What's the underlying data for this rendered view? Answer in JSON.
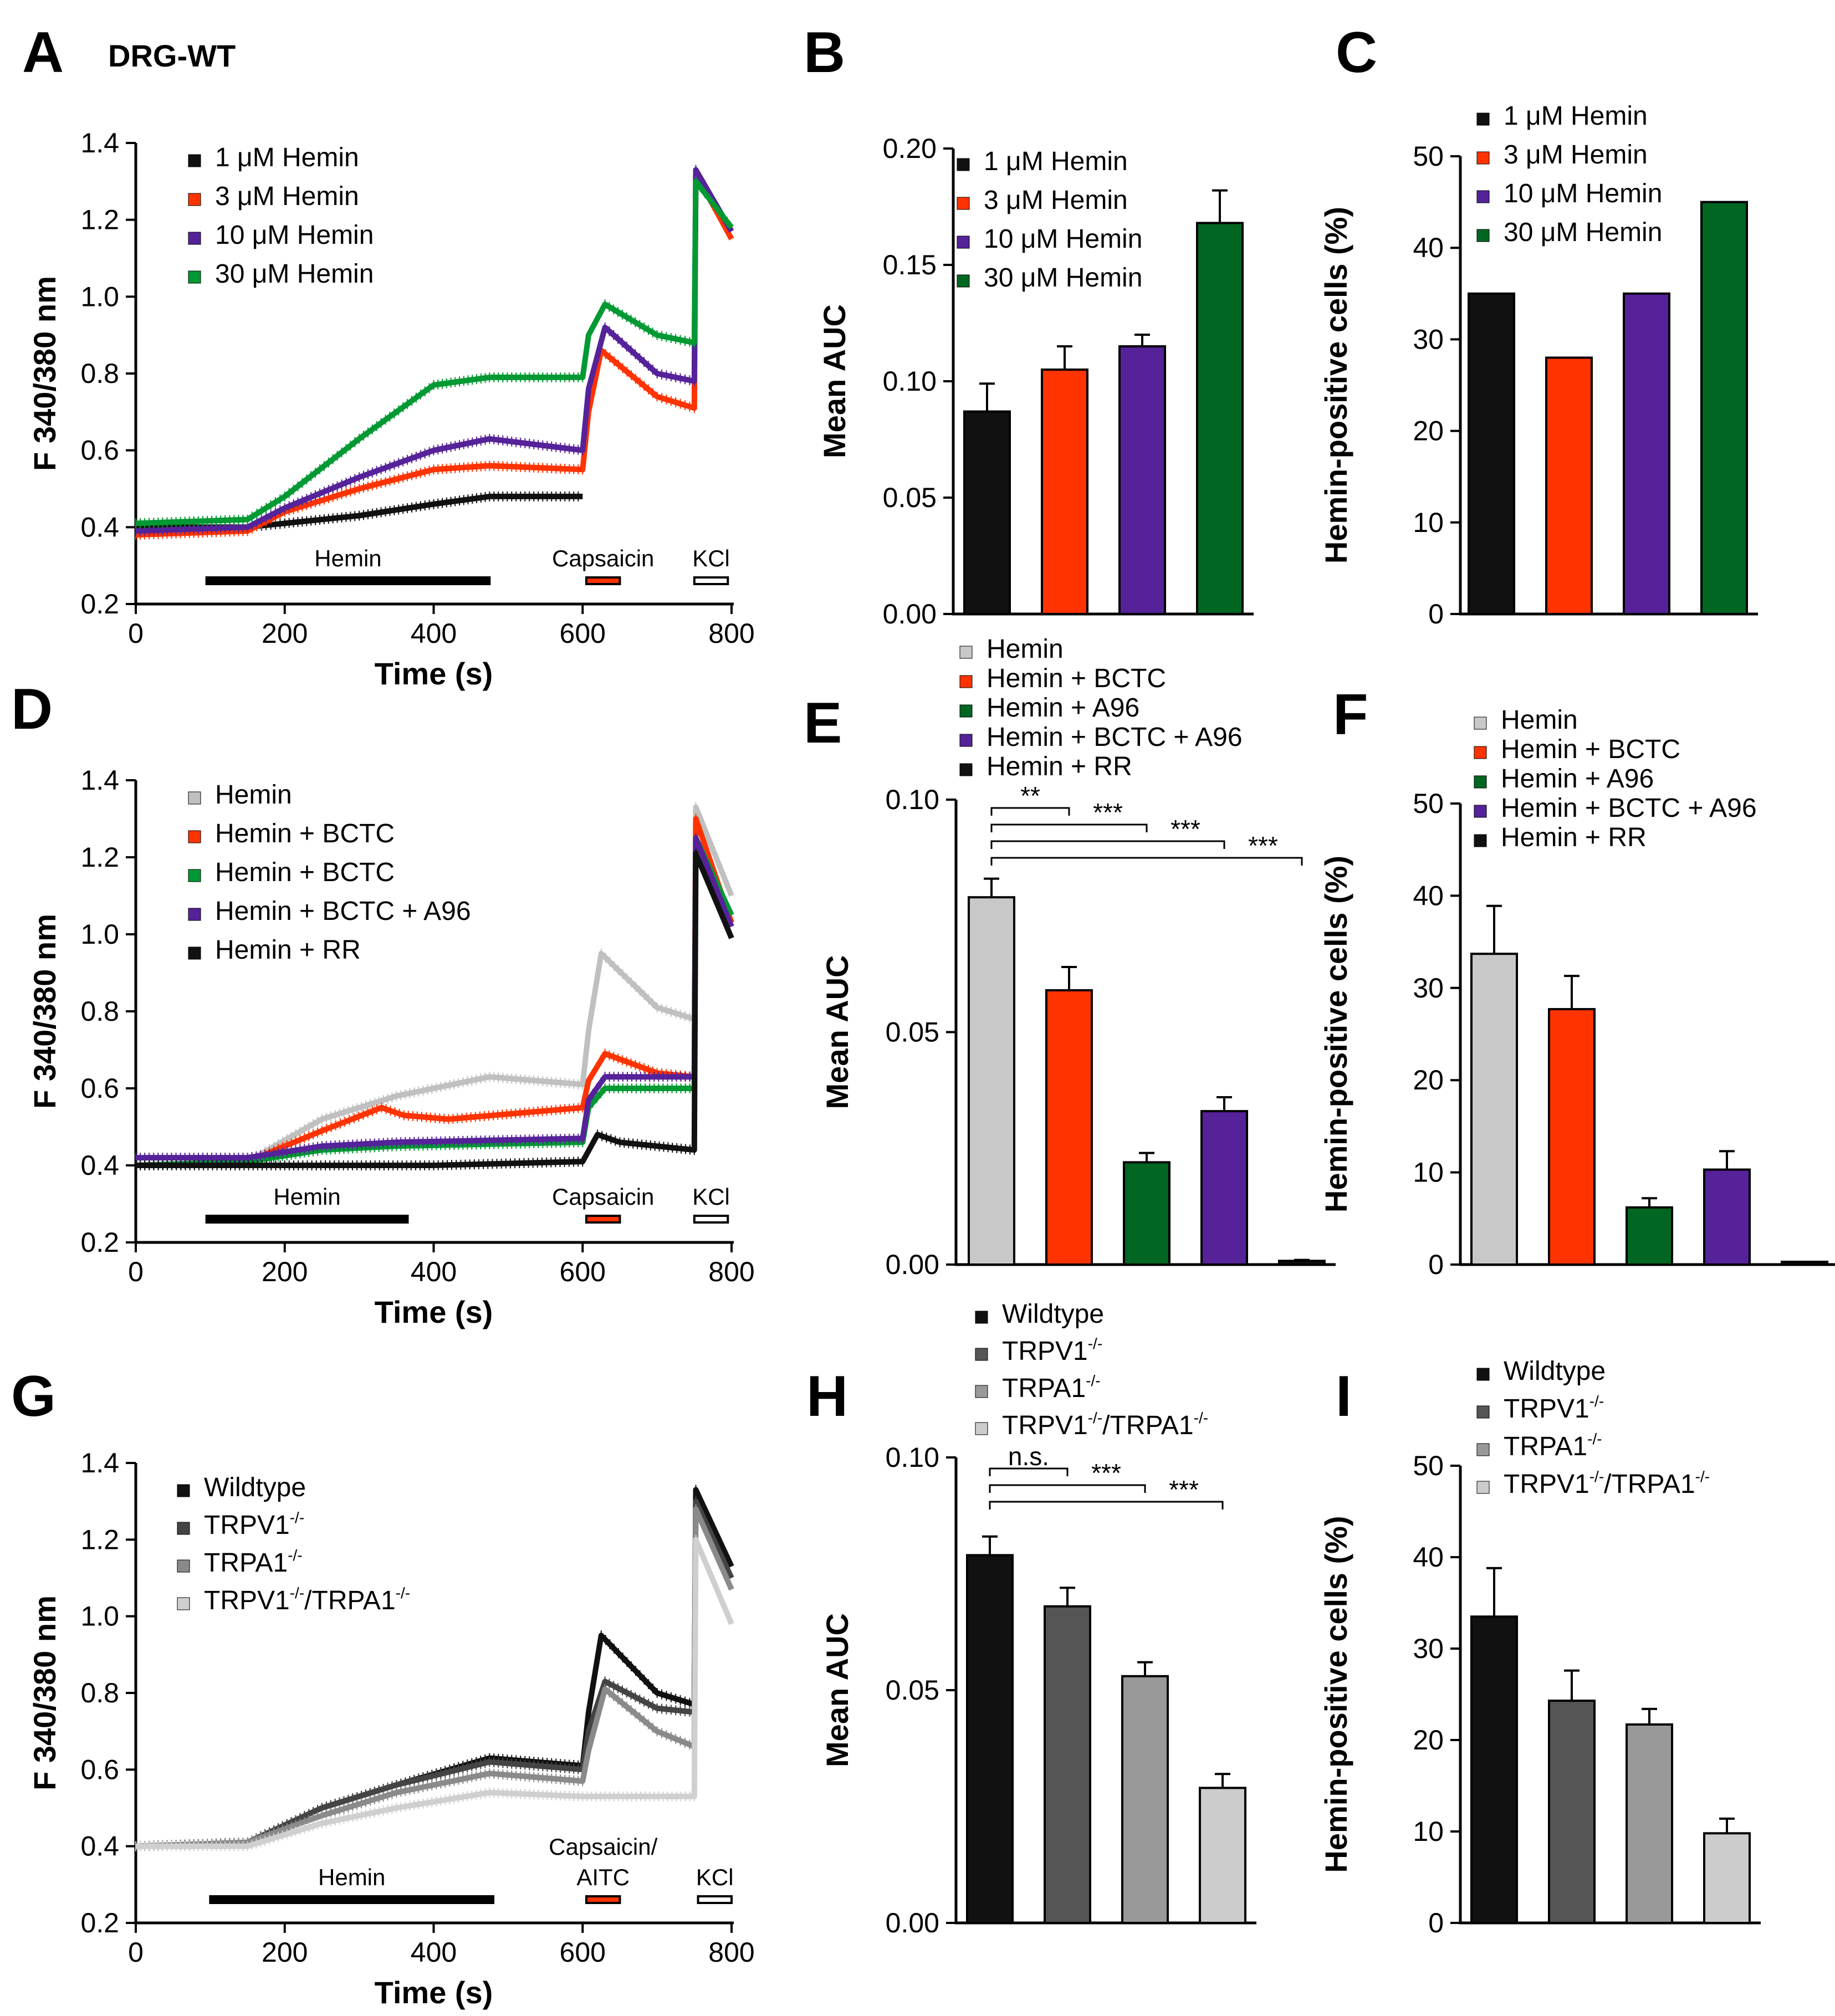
{
  "figure_title": "DRG-WT",
  "panels": [
    "A",
    "B",
    "C",
    "D",
    "E",
    "F",
    "G",
    "H",
    "I"
  ],
  "chart_data": [
    {
      "id": "A",
      "type": "line",
      "xlabel": "Time (s)",
      "ylabel": "F 340/380 nm",
      "xlim": [
        0,
        800
      ],
      "ylim": [
        0.2,
        1.4
      ],
      "xticks": [
        "0",
        "200",
        "400",
        "600",
        "800"
      ],
      "yticks": [
        "0.2",
        "0.4",
        "0.6",
        "0.8",
        "1.0",
        "1.2",
        "1.4"
      ],
      "bars": [
        {
          "label": "Hemin",
          "start": 95,
          "end": 475,
          "color": "#000000"
        },
        {
          "label": "Capsaicin",
          "start": 605,
          "end": 650,
          "color": "#ff3300"
        },
        {
          "label": "KCl",
          "start": 750,
          "end": 795,
          "color": "#ffffff"
        }
      ],
      "series": [
        {
          "name": "1 μM Hemin",
          "color": "#111111",
          "points": [
            [
              0,
              0.4
            ],
            [
              150,
              0.4
            ],
            [
              200,
              0.41
            ],
            [
              300,
              0.43
            ],
            [
              400,
              0.46
            ],
            [
              475,
              0.48
            ],
            [
              600,
              0.48
            ]
          ]
        },
        {
          "name": "3 μM Hemin",
          "color": "#ff3300",
          "points": [
            [
              0,
              0.38
            ],
            [
              150,
              0.39
            ],
            [
              200,
              0.44
            ],
            [
              300,
              0.5
            ],
            [
              400,
              0.55
            ],
            [
              475,
              0.56
            ],
            [
              600,
              0.55
            ],
            [
              608,
              0.7
            ],
            [
              625,
              0.86
            ],
            [
              700,
              0.74
            ],
            [
              750,
              0.71
            ],
            [
              752,
              1.32
            ],
            [
              800,
              1.15
            ]
          ]
        },
        {
          "name": "10 μM Hemin",
          "color": "#552299",
          "points": [
            [
              0,
              0.39
            ],
            [
              150,
              0.4
            ],
            [
              200,
              0.45
            ],
            [
              300,
              0.53
            ],
            [
              400,
              0.6
            ],
            [
              475,
              0.63
            ],
            [
              600,
              0.6
            ],
            [
              608,
              0.76
            ],
            [
              630,
              0.92
            ],
            [
              700,
              0.8
            ],
            [
              750,
              0.78
            ],
            [
              752,
              1.33
            ],
            [
              800,
              1.17
            ]
          ]
        },
        {
          "name": "30 μM Hemin",
          "color": "#009933",
          "points": [
            [
              0,
              0.41
            ],
            [
              150,
              0.42
            ],
            [
              200,
              0.48
            ],
            [
              300,
              0.63
            ],
            [
              400,
              0.77
            ],
            [
              475,
              0.79
            ],
            [
              600,
              0.79
            ],
            [
              608,
              0.9
            ],
            [
              630,
              0.98
            ],
            [
              700,
              0.9
            ],
            [
              750,
              0.88
            ],
            [
              752,
              1.3
            ],
            [
              800,
              1.18
            ]
          ]
        }
      ]
    },
    {
      "id": "B",
      "type": "bar",
      "ylabel": "Mean AUC",
      "ylim": [
        0,
        0.2
      ],
      "yticks": [
        "0.00",
        "0.05",
        "0.10",
        "0.15",
        "0.20"
      ],
      "categories": [
        "1 μM Hemin",
        "3 μM Hemin",
        "10 μM Hemin",
        "30 μM Hemin"
      ],
      "values": [
        0.087,
        0.105,
        0.115,
        0.168
      ],
      "errors": [
        0.012,
        0.01,
        0.005,
        0.014
      ],
      "colors": [
        "#111111",
        "#ff3300",
        "#552299",
        "#006622"
      ]
    },
    {
      "id": "C",
      "type": "bar",
      "ylabel": "Hemin-positive cells (%)",
      "ylim": [
        0,
        50
      ],
      "yticks": [
        "0",
        "10",
        "20",
        "30",
        "40",
        "50"
      ],
      "categories": [
        "1 μM Hemin",
        "3 μM Hemin",
        "10 μM Hemin",
        "30 μM Hemin"
      ],
      "values": [
        35,
        28,
        35,
        45
      ],
      "colors": [
        "#111111",
        "#ff3300",
        "#552299",
        "#006622"
      ]
    },
    {
      "id": "D",
      "type": "line",
      "xlabel": "Time (s)",
      "ylabel": "F 340/380 nm",
      "xlim": [
        0,
        800
      ],
      "ylim": [
        0.2,
        1.4
      ],
      "xticks": [
        "0",
        "200",
        "400",
        "600",
        "800"
      ],
      "yticks": [
        "0.2",
        "0.4",
        "0.6",
        "0.8",
        "1.0",
        "1.2",
        "1.4"
      ],
      "bars": [
        {
          "label": "Hemin",
          "start": 95,
          "end": 365,
          "color": "#000000"
        },
        {
          "label": "Capsaicin",
          "start": 605,
          "end": 650,
          "color": "#ff3300"
        },
        {
          "label": "KCl",
          "start": 750,
          "end": 795,
          "color": "#ffffff"
        }
      ],
      "series": [
        {
          "name": "Hemin",
          "color": "#c0c0c0",
          "points": [
            [
              0,
              0.4
            ],
            [
              150,
              0.41
            ],
            [
              250,
              0.52
            ],
            [
              350,
              0.58
            ],
            [
              475,
              0.63
            ],
            [
              600,
              0.61
            ],
            [
              608,
              0.75
            ],
            [
              625,
              0.95
            ],
            [
              700,
              0.81
            ],
            [
              750,
              0.78
            ],
            [
              752,
              1.33
            ],
            [
              800,
              1.1
            ]
          ]
        },
        {
          "name": "Hemin + BCTC",
          "color": "#ff3300",
          "points": [
            [
              0,
              0.4
            ],
            [
              150,
              0.41
            ],
            [
              250,
              0.49
            ],
            [
              330,
              0.55
            ],
            [
              360,
              0.53
            ],
            [
              420,
              0.52
            ],
            [
              600,
              0.55
            ],
            [
              608,
              0.62
            ],
            [
              630,
              0.69
            ],
            [
              700,
              0.64
            ],
            [
              750,
              0.63
            ],
            [
              752,
              1.3
            ],
            [
              800,
              1.03
            ]
          ]
        },
        {
          "name": "Hemin + BCTC",
          "color": "#009933",
          "points": [
            [
              0,
              0.4
            ],
            [
              150,
              0.41
            ],
            [
              250,
              0.44
            ],
            [
              350,
              0.45
            ],
            [
              600,
              0.46
            ],
            [
              608,
              0.55
            ],
            [
              630,
              0.6
            ],
            [
              750,
              0.6
            ],
            [
              752,
              1.25
            ],
            [
              800,
              1.05
            ]
          ]
        },
        {
          "name": "Hemin + BCTC + A96",
          "color": "#552299",
          "points": [
            [
              0,
              0.42
            ],
            [
              150,
              0.42
            ],
            [
              250,
              0.45
            ],
            [
              350,
              0.46
            ],
            [
              600,
              0.47
            ],
            [
              608,
              0.57
            ],
            [
              630,
              0.63
            ],
            [
              750,
              0.63
            ],
            [
              752,
              1.25
            ],
            [
              800,
              1.02
            ]
          ]
        },
        {
          "name": "Hemin + RR",
          "color": "#111111",
          "points": [
            [
              0,
              0.4
            ],
            [
              200,
              0.4
            ],
            [
              400,
              0.4
            ],
            [
              600,
              0.41
            ],
            [
              620,
              0.48
            ],
            [
              650,
              0.46
            ],
            [
              750,
              0.44
            ],
            [
              752,
              1.21
            ],
            [
              800,
              0.99
            ]
          ]
        }
      ]
    },
    {
      "id": "E",
      "type": "bar",
      "ylabel": "Mean AUC",
      "ylim": [
        0,
        0.1
      ],
      "yticks": [
        "0.00",
        "0.05",
        "0.10"
      ],
      "categories": [
        "Hemin",
        "Hemin + BCTC",
        "Hemin + A96",
        "Hemin + BCTC + A96",
        "Hemin + RR"
      ],
      "values": [
        0.079,
        0.059,
        0.022,
        0.033,
        0.0008
      ],
      "errors": [
        0.004,
        0.005,
        0.002,
        0.003,
        0.0002
      ],
      "colors": [
        "#c8c8c8",
        "#ff3300",
        "#006622",
        "#552299",
        "#111111"
      ],
      "significance": [
        {
          "label": "**",
          "from": 0,
          "to": 1
        },
        {
          "label": "***",
          "from": 0,
          "to": 2
        },
        {
          "label": "***",
          "from": 0,
          "to": 3
        },
        {
          "label": "***",
          "from": 0,
          "to": 4
        }
      ]
    },
    {
      "id": "F",
      "type": "bar",
      "ylabel": "Hemin-positive cells (%)",
      "ylim": [
        0,
        50
      ],
      "yticks": [
        "0",
        "10",
        "20",
        "30",
        "40",
        "50"
      ],
      "categories": [
        "Hemin",
        "Hemin + BCTC",
        "Hemin + A96",
        "Hemin + BCTC + A96",
        "Hemin + RR"
      ],
      "values": [
        33.7,
        27.7,
        6.2,
        10.3,
        0.3
      ],
      "errors": [
        5.2,
        3.6,
        1.0,
        2.0,
        0
      ],
      "colors": [
        "#c8c8c8",
        "#ff3300",
        "#006622",
        "#552299",
        "#111111"
      ]
    },
    {
      "id": "G",
      "type": "line",
      "xlabel": "Time (s)",
      "ylabel": "F 340/380 nm",
      "xlim": [
        0,
        800
      ],
      "ylim": [
        0.2,
        1.4
      ],
      "xticks": [
        "0",
        "200",
        "400",
        "600",
        "800"
      ],
      "yticks": [
        "0.2",
        "0.4",
        "0.6",
        "0.8",
        "1.0",
        "1.2",
        "1.4"
      ],
      "bars": [
        {
          "label": "Hemin",
          "start": 100,
          "end": 480,
          "color": "#000000"
        },
        {
          "label": "Capsaicin/AITC",
          "start": 605,
          "end": 650,
          "color": "#ff3300"
        },
        {
          "label": "KCl",
          "start": 755,
          "end": 800,
          "color": "#ffffff"
        }
      ],
      "series": [
        {
          "name": "Wildtype",
          "color": "#111111",
          "points": [
            [
              0,
              0.4
            ],
            [
              150,
              0.41
            ],
            [
              250,
              0.5
            ],
            [
              350,
              0.56
            ],
            [
              475,
              0.63
            ],
            [
              600,
              0.61
            ],
            [
              608,
              0.75
            ],
            [
              625,
              0.95
            ],
            [
              700,
              0.8
            ],
            [
              750,
              0.77
            ],
            [
              752,
              1.33
            ],
            [
              800,
              1.13
            ]
          ]
        },
        {
          "name": "TRPV1-/-",
          "color": "#444444",
          "points": [
            [
              0,
              0.4
            ],
            [
              150,
              0.41
            ],
            [
              250,
              0.5
            ],
            [
              350,
              0.56
            ],
            [
              475,
              0.62
            ],
            [
              600,
              0.6
            ],
            [
              608,
              0.7
            ],
            [
              630,
              0.83
            ],
            [
              700,
              0.76
            ],
            [
              750,
              0.75
            ],
            [
              752,
              1.3
            ],
            [
              800,
              1.1
            ]
          ]
        },
        {
          "name": "TRPA1-/-",
          "color": "#8a8a8a",
          "points": [
            [
              0,
              0.4
            ],
            [
              150,
              0.41
            ],
            [
              250,
              0.48
            ],
            [
              350,
              0.54
            ],
            [
              475,
              0.59
            ],
            [
              600,
              0.57
            ],
            [
              608,
              0.65
            ],
            [
              630,
              0.81
            ],
            [
              700,
              0.7
            ],
            [
              750,
              0.66
            ],
            [
              752,
              1.28
            ],
            [
              800,
              1.07
            ]
          ]
        },
        {
          "name": "TRPV1-/-/TRPA1-/-",
          "color": "#cfcfcf",
          "points": [
            [
              0,
              0.4
            ],
            [
              150,
              0.4
            ],
            [
              250,
              0.46
            ],
            [
              350,
              0.5
            ],
            [
              475,
              0.54
            ],
            [
              600,
              0.53
            ],
            [
              750,
              0.53
            ],
            [
              752,
              1.2
            ],
            [
              800,
              0.98
            ]
          ]
        }
      ]
    },
    {
      "id": "H",
      "type": "bar",
      "ylabel": "Mean AUC",
      "ylim": [
        0,
        0.1
      ],
      "yticks": [
        "0.00",
        "0.05",
        "0.10"
      ],
      "categories": [
        "Wildtype",
        "TRPV1-/-",
        "TRPA1-/-",
        "TRPV1-/-/TRPA1-/-"
      ],
      "values": [
        0.079,
        0.068,
        0.053,
        0.029
      ],
      "errors": [
        0.004,
        0.004,
        0.003,
        0.003
      ],
      "colors": [
        "#111111",
        "#555555",
        "#999999",
        "#cccccc"
      ],
      "significance": [
        {
          "label": "n.s.",
          "from": 0,
          "to": 1
        },
        {
          "label": "***",
          "from": 0,
          "to": 2
        },
        {
          "label": "***",
          "from": 0,
          "to": 3
        }
      ]
    },
    {
      "id": "I",
      "type": "bar",
      "ylabel": "Hemin-positive cells (%)",
      "ylim": [
        0,
        50
      ],
      "yticks": [
        "0",
        "10",
        "20",
        "30",
        "40",
        "50"
      ],
      "categories": [
        "Wildtype",
        "TRPV1-/-",
        "TRPA1-/-",
        "TRPV1-/-/TRPA1-/-"
      ],
      "values": [
        33.5,
        24.3,
        21.7,
        9.8
      ],
      "errors": [
        5.3,
        3.3,
        1.7,
        1.6
      ],
      "colors": [
        "#111111",
        "#555555",
        "#999999",
        "#cccccc"
      ]
    }
  ]
}
